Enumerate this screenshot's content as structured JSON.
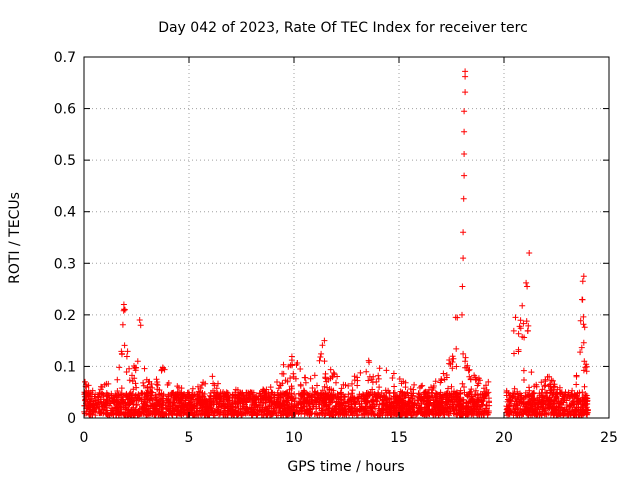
{
  "chart_data": {
    "type": "scatter",
    "title": "Day 042 of 2023, Rate Of TEC Index for receiver terc",
    "xlabel": "GPS time / hours",
    "ylabel": "ROTI / TECUs",
    "xlim": [
      0,
      25
    ],
    "ylim": [
      0,
      0.7
    ],
    "xticks": [
      "0",
      "5",
      "10",
      "15",
      "20",
      "25"
    ],
    "yticks": [
      "0",
      "0.1",
      "0.2",
      "0.3",
      "0.4",
      "0.5",
      "0.6",
      "0.7"
    ],
    "grid": true,
    "marker": "+",
    "color": "#ff0000",
    "background_band": {
      "x_start": 0,
      "x_end": 24,
      "gap": [
        19.3,
        20.1
      ],
      "typical_max": 0.045,
      "density_per_hour": 140
    },
    "envelope": [
      [
        0.0,
        0.07
      ],
      [
        0.5,
        0.05
      ],
      [
        1.0,
        0.06
      ],
      [
        1.5,
        0.07
      ],
      [
        1.8,
        0.13
      ],
      [
        1.9,
        0.22
      ],
      [
        2.0,
        0.16
      ],
      [
        2.2,
        0.08
      ],
      [
        2.6,
        0.12
      ],
      [
        2.7,
        0.19
      ],
      [
        2.9,
        0.08
      ],
      [
        3.3,
        0.06
      ],
      [
        3.8,
        0.1
      ],
      [
        4.2,
        0.06
      ],
      [
        5.0,
        0.05
      ],
      [
        5.8,
        0.07
      ],
      [
        6.2,
        0.08
      ],
      [
        6.6,
        0.05
      ],
      [
        7.5,
        0.05
      ],
      [
        8.5,
        0.05
      ],
      [
        9.3,
        0.07
      ],
      [
        9.6,
        0.12
      ],
      [
        10.0,
        0.12
      ],
      [
        10.5,
        0.08
      ],
      [
        11.0,
        0.08
      ],
      [
        11.4,
        0.15
      ],
      [
        11.7,
        0.1
      ],
      [
        12.3,
        0.06
      ],
      [
        13.0,
        0.08
      ],
      [
        13.5,
        0.11
      ],
      [
        14.0,
        0.09
      ],
      [
        14.4,
        0.11
      ],
      [
        14.8,
        0.08
      ],
      [
        15.5,
        0.06
      ],
      [
        16.2,
        0.06
      ],
      [
        17.0,
        0.07
      ],
      [
        17.5,
        0.12
      ],
      [
        17.7,
        0.2
      ],
      [
        18.0,
        0.16
      ],
      [
        18.5,
        0.08
      ],
      [
        19.2,
        0.07
      ],
      [
        20.2,
        0.05
      ],
      [
        20.5,
        0.2
      ],
      [
        20.7,
        0.16
      ],
      [
        21.0,
        0.26
      ],
      [
        21.3,
        0.12
      ],
      [
        21.6,
        0.08
      ],
      [
        22.0,
        0.08
      ],
      [
        22.3,
        0.07
      ],
      [
        22.8,
        0.05
      ],
      [
        23.4,
        0.05
      ],
      [
        23.7,
        0.28
      ],
      [
        23.9,
        0.13
      ],
      [
        24.0,
        0.07
      ]
    ],
    "outliers": [
      {
        "x": 18.15,
        "y": 0.672
      },
      {
        "x": 18.15,
        "y": 0.662
      },
      {
        "x": 18.15,
        "y": 0.632
      },
      {
        "x": 18.1,
        "y": 0.595
      },
      {
        "x": 18.1,
        "y": 0.555
      },
      {
        "x": 18.1,
        "y": 0.512
      },
      {
        "x": 18.1,
        "y": 0.47
      },
      {
        "x": 18.08,
        "y": 0.425
      },
      {
        "x": 18.05,
        "y": 0.36
      },
      {
        "x": 18.05,
        "y": 0.31
      },
      {
        "x": 18.02,
        "y": 0.255
      },
      {
        "x": 18.0,
        "y": 0.2
      },
      {
        "x": 21.2,
        "y": 0.32
      },
      {
        "x": 21.05,
        "y": 0.262
      },
      {
        "x": 21.1,
        "y": 0.255
      },
      {
        "x": 23.8,
        "y": 0.275
      },
      {
        "x": 23.75,
        "y": 0.265
      },
      {
        "x": 1.9,
        "y": 0.22
      },
      {
        "x": 1.95,
        "y": 0.21
      },
      {
        "x": 2.65,
        "y": 0.19
      },
      {
        "x": 2.7,
        "y": 0.18
      },
      {
        "x": 11.45,
        "y": 0.15
      },
      {
        "x": 17.7,
        "y": 0.195
      },
      {
        "x": 20.55,
        "y": 0.195
      },
      {
        "x": 3.75,
        "y": 0.098
      },
      {
        "x": 0.05,
        "y": 0.07
      }
    ]
  }
}
